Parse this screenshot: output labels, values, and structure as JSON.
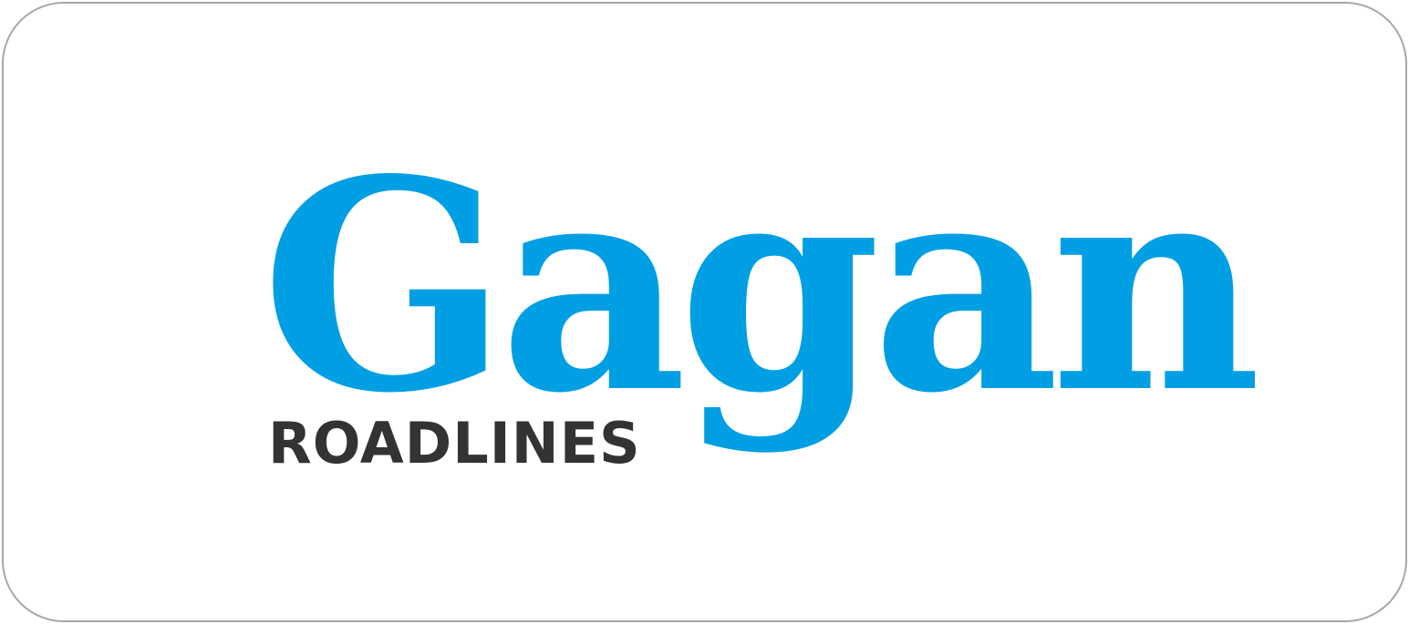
{
  "logo": {
    "name": "Gagan",
    "tagline": "ROADLINES"
  },
  "colors": {
    "name": "#009fe3",
    "tagline": "#333333",
    "border": "#a8a8a8",
    "background": "#ffffff"
  }
}
